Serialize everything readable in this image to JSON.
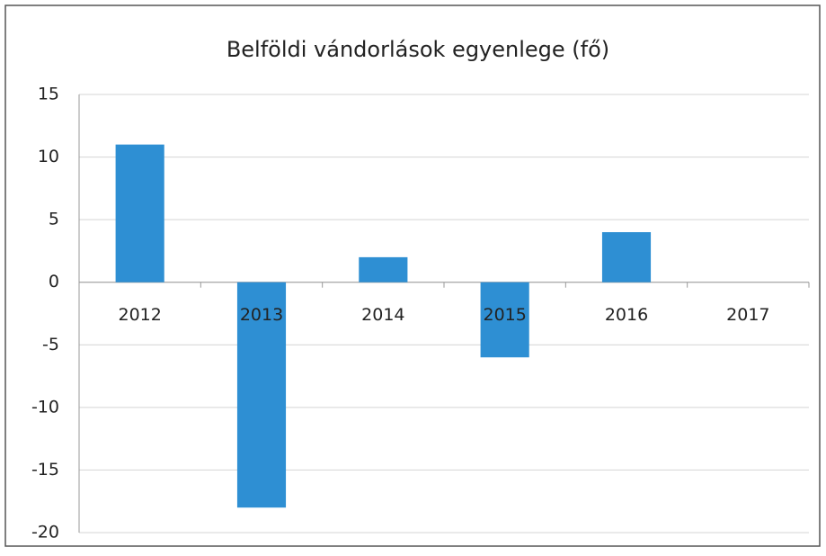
{
  "chart_data": {
    "type": "bar",
    "title": "Belföldi vándorlások egyenlege (fő)",
    "categories": [
      "2012",
      "2013",
      "2014",
      "2015",
      "2016",
      "2017"
    ],
    "values": [
      11,
      -18,
      2,
      -6,
      4,
      0
    ],
    "color": "#2e8fd3",
    "ylim": [
      -20,
      15
    ],
    "yticks": [
      -20,
      -15,
      -10,
      -5,
      0,
      5,
      10,
      15
    ],
    "grid": true
  }
}
